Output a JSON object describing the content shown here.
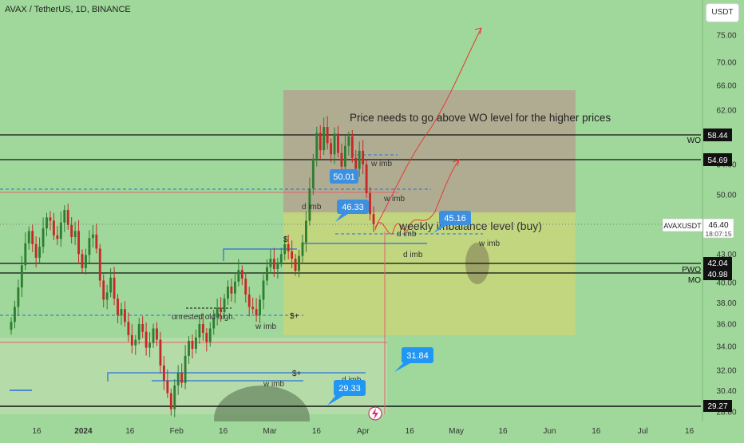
{
  "header": {
    "title": "AVAX / TetherUS, 1D, BINANCE",
    "currency_button": "USDT"
  },
  "colors": {
    "background": "#9fd89a",
    "bull": "#2e7d32",
    "bear": "#c62828",
    "callout": "#2196f3",
    "zone_upper": "#b8a98e",
    "zone_lower": "#c8d67e"
  },
  "price_labels": {
    "wo": "58.44",
    "level_5469": "54.69",
    "pwo": "42.04",
    "mo": "40.98",
    "low_2927": "29.27",
    "symbol": "AVAXUSDT",
    "last_price": "46.40",
    "countdown": "18:07:15"
  },
  "level_names": {
    "wo": "WO",
    "pwo": "PWO",
    "mo": "MO"
  },
  "annotations": {
    "headline": "Price needs to go above WO level for the higher prices",
    "zone_label": "weekly imbalance level (buy)",
    "unrested_high": "unrested old high.",
    "w_imb": "w imb",
    "d_imb": "d imb",
    "dollar_plus": "$+",
    "dollar": "$"
  },
  "callouts": {
    "c1": "50.01",
    "c2": "46.33",
    "c3": "45.16",
    "c4": "31.84",
    "c5": "29.33"
  },
  "chart_data": {
    "type": "candlestick",
    "x_ticks": [
      "16",
      "2024",
      "16",
      "Feb",
      "16",
      "Mar",
      "16",
      "Apr",
      "16",
      "May",
      "16",
      "Jun",
      "16",
      "Jul",
      "16"
    ],
    "y_ticks": [
      75.0,
      70.0,
      66.0,
      62.0,
      54.0,
      50.0,
      43.0,
      40.0,
      38.0,
      36.0,
      34.0,
      32.0,
      30.4,
      28.8
    ],
    "y_range": [
      28.2,
      79
    ],
    "scale": "log",
    "grid": false,
    "horizontal_levels": [
      58.44,
      54.69,
      42.04,
      40.98,
      29.27
    ],
    "last_price": 46.4,
    "close_series": [
      36.2,
      37.6,
      39.5,
      41.8,
      44.2,
      45.6,
      44.1,
      42.6,
      43.8,
      45.9,
      47.2,
      46.8,
      45.1,
      44.7,
      46.6,
      48.1,
      46.3,
      44.9,
      45.6,
      43.0,
      41.5,
      42.9,
      44.8,
      45.2,
      43.6,
      40.2,
      38.3,
      39.0,
      40.5,
      38.4,
      36.8,
      37.4,
      36.2,
      35.0,
      34.1,
      34.6,
      36.0,
      35.3,
      33.9,
      34.3,
      35.6,
      34.6,
      32.4,
      31.2,
      30.2,
      29.0,
      30.8,
      31.8,
      31.0,
      33.2,
      34.5,
      33.8,
      34.8,
      36.0,
      35.2,
      34.4,
      35.6,
      36.6,
      37.5,
      37.1,
      38.4,
      39.6,
      38.9,
      40.1,
      41.3,
      40.4,
      38.8,
      37.6,
      37.4,
      36.8,
      38.3,
      40.2,
      41.6,
      42.5,
      41.4,
      42.1,
      43.0,
      44.1,
      43.3,
      42.5,
      41.2,
      42.8,
      44.3,
      46.8,
      50.8,
      54.8,
      58.5,
      56.0,
      59.4,
      57.0,
      55.4,
      58.4,
      55.6,
      53.7,
      56.6,
      58.0,
      54.9,
      53.4,
      55.9,
      54.0,
      50.2,
      47.6,
      46.4
    ]
  }
}
